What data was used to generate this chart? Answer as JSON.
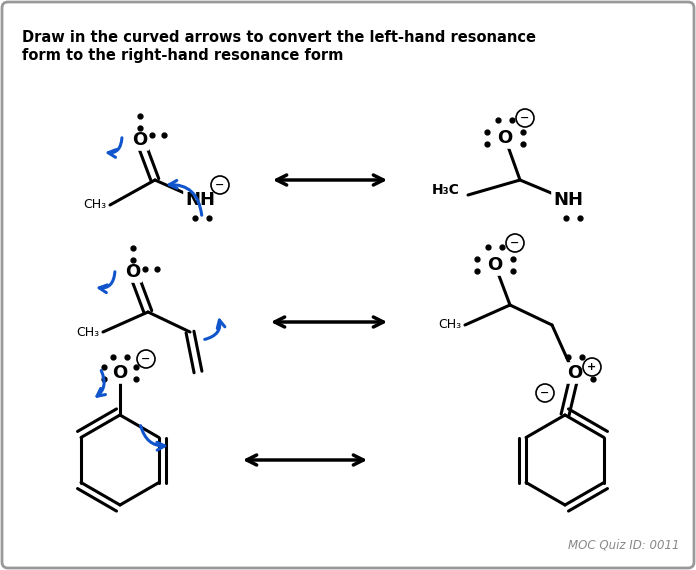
{
  "title_line1": "Draw in the curved arrows to convert the left-hand resonance",
  "title_line2": "form to the right-hand resonance form",
  "bg_color": "#ffffff",
  "border_color": "#999999",
  "arrow_color": "#1155cc",
  "black": "#000000",
  "gray": "#888888",
  "quiz_id": "MOC Quiz ID: 0011",
  "figsize": [
    6.96,
    5.7
  ],
  "dpi": 100
}
